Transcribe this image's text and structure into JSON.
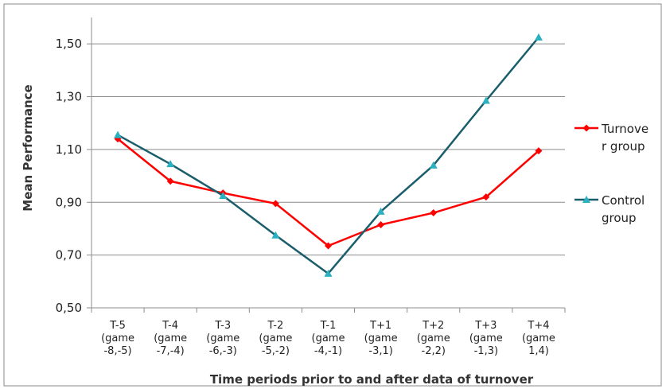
{
  "chart_data": {
    "type": "line",
    "title": "",
    "xlabel": "Time periods prior to and after data of turnover",
    "ylabel": "Mean Performance",
    "ylim": [
      0.5,
      1.6
    ],
    "y_ticks": [
      "0,50",
      "0,70",
      "0,90",
      "1,10",
      "1,30",
      "1,50"
    ],
    "y_tick_values": [
      0.5,
      0.7,
      0.9,
      1.1,
      1.3,
      1.5
    ],
    "grid": "horizontal",
    "legend_position": "right",
    "categories": [
      [
        "T-5",
        "(game",
        "-8,-5)"
      ],
      [
        "T-4",
        "(game",
        "-7,-4)"
      ],
      [
        "T-3",
        "(game",
        "-6,-3)"
      ],
      [
        "T-2",
        "(game",
        "-5,-2)"
      ],
      [
        "T-1",
        "(game",
        "-4,-1)"
      ],
      [
        "T+1",
        "(game",
        "-3,1)"
      ],
      [
        "T+2",
        "(game",
        "-2,2)"
      ],
      [
        "T+3",
        "(game",
        "-1,3)"
      ],
      [
        "T+4",
        "(game",
        "1,4)"
      ]
    ],
    "series": [
      {
        "name": "Turnover group",
        "legend_lines": [
          "Turnove",
          "r group"
        ],
        "color": "#ff0000",
        "marker": "diamond",
        "values": [
          1.14,
          0.98,
          0.935,
          0.895,
          0.735,
          0.815,
          0.86,
          0.92,
          1.095
        ]
      },
      {
        "name": "Control group",
        "legend_lines": [
          "Control",
          "group"
        ],
        "color": "#1b5e6b",
        "marker_color": "#2ab0c0",
        "marker": "triangle",
        "values": [
          1.155,
          1.045,
          0.925,
          0.775,
          0.63,
          0.865,
          1.04,
          1.285,
          1.525
        ]
      }
    ]
  }
}
